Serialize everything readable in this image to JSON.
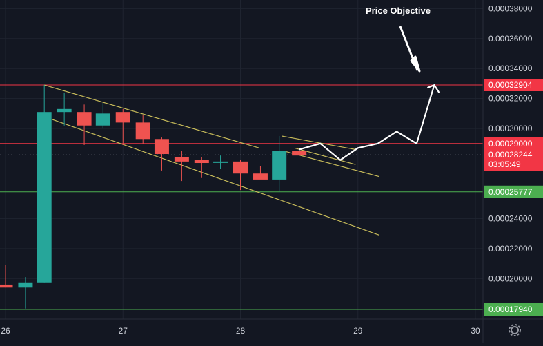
{
  "chart_data": {
    "type": "candlestick",
    "annotation": "Price Objective",
    "x_ticks": [
      "26",
      "27",
      "28",
      "29",
      "30"
    ],
    "y_ticks": [
      "0.00038000",
      "0.00036000",
      "0.00034000",
      "0.00032000",
      "0.00030000",
      "0.00024000",
      "0.00022000",
      "0.00020000"
    ],
    "y_tick_values": [
      0.00038,
      0.00036,
      0.00034,
      0.00032,
      0.0003,
      0.00024,
      0.00022,
      0.0002
    ],
    "ylim": [
      0.00016,
      0.00038
    ],
    "xlim": [
      25.95,
      30.05
    ],
    "price_labels": [
      {
        "value": 0.00032904,
        "text": "0.00032904",
        "color": "#f23645"
      },
      {
        "value": 0.00029,
        "text": "0.00029000",
        "color": "#f23645"
      },
      {
        "value": 0.00028244,
        "text": "0.00028244",
        "color": "#f23645",
        "countdown": "03:05:49"
      },
      {
        "value": 0.00025777,
        "text": "0.00025777",
        "color": "#4caf50"
      },
      {
        "value": 0.0001794,
        "text": "0.00017940",
        "color": "#4caf50"
      }
    ],
    "horizontal_lines": [
      {
        "value": 0.00032904,
        "color": "#f23645"
      },
      {
        "value": 0.00029,
        "color": "#f23645"
      },
      {
        "value": 0.00025777,
        "color": "#4caf50"
      },
      {
        "value": 0.0001794,
        "color": "#4caf50"
      }
    ],
    "current_price": 0.00028244,
    "candles": [
      {
        "t": 26.0,
        "o": 0.000196,
        "h": 0.000209,
        "l": 0.000194,
        "c": 0.000194
      },
      {
        "t": 26.17,
        "o": 0.000194,
        "h": 0.000201,
        "l": 0.00018,
        "c": 0.000197
      },
      {
        "t": 26.33,
        "o": 0.000197,
        "h": 0.000329,
        "l": 0.000197,
        "c": 0.000311
      },
      {
        "t": 26.5,
        "o": 0.000311,
        "h": 0.000324,
        "l": 0.000302,
        "c": 0.000313
      },
      {
        "t": 26.67,
        "o": 0.000311,
        "h": 0.000316,
        "l": 0.000289,
        "c": 0.000302
      },
      {
        "t": 26.83,
        "o": 0.000302,
        "h": 0.000317,
        "l": 0.0003,
        "c": 0.00031
      },
      {
        "t": 27.0,
        "o": 0.000311,
        "h": 0.000313,
        "l": 0.000289,
        "c": 0.000304
      },
      {
        "t": 27.17,
        "o": 0.000304,
        "h": 0.000309,
        "l": 0.00029,
        "c": 0.000293
      },
      {
        "t": 27.33,
        "o": 0.000293,
        "h": 0.000294,
        "l": 0.000272,
        "c": 0.000283
      },
      {
        "t": 27.5,
        "o": 0.000281,
        "h": 0.000285,
        "l": 0.000265,
        "c": 0.000278
      },
      {
        "t": 27.67,
        "o": 0.000279,
        "h": 0.000281,
        "l": 0.000267,
        "c": 0.000277
      },
      {
        "t": 27.83,
        "o": 0.000278,
        "h": 0.000282,
        "l": 0.000273,
        "c": 0.000278
      },
      {
        "t": 28.0,
        "o": 0.000278,
        "h": 0.000279,
        "l": 0.000259,
        "c": 0.00027
      },
      {
        "t": 28.17,
        "o": 0.00027,
        "h": 0.000275,
        "l": 0.000268,
        "c": 0.000266
      },
      {
        "t": 28.33,
        "o": 0.000266,
        "h": 0.000295,
        "l": 0.000258,
        "c": 0.000285
      },
      {
        "t": 28.5,
        "o": 0.000285,
        "h": 0.000286,
        "l": 0.000282,
        "c": 0.000282
      }
    ],
    "trendlines": [
      {
        "t1": 26.33,
        "v1": 0.000329,
        "t2": 28.16,
        "v2": 0.000287
      },
      {
        "t1": 26.4,
        "v1": 0.000306,
        "t2": 29.18,
        "v2": 0.000229
      },
      {
        "t1": 28.37,
        "v1": 0.000285,
        "t2": 29.18,
        "v2": 0.000268
      },
      {
        "t1": 28.35,
        "v1": 0.000295,
        "t2": 28.98,
        "v2": 0.000286
      },
      {
        "t1": 28.46,
        "v1": 0.000287,
        "t2": 28.98,
        "v2": 0.000276
      }
    ],
    "projection": [
      {
        "t": 28.5,
        "v": 0.000286
      },
      {
        "t": 28.68,
        "v": 0.00029
      },
      {
        "t": 28.85,
        "v": 0.000279
      },
      {
        "t": 29.0,
        "v": 0.000287
      },
      {
        "t": 29.17,
        "v": 0.00029
      },
      {
        "t": 29.33,
        "v": 0.000298
      },
      {
        "t": 29.5,
        "v": 0.00029
      },
      {
        "t": 29.65,
        "v": 0.000329
      }
    ],
    "colors": {
      "background": "#131722",
      "grid": "#1f2430",
      "up": "#26a69a",
      "down": "#ef5350",
      "trendline": "#c8bc5a",
      "projection": "#ffffff",
      "axis_text": "#d1d4dc",
      "current_line": "#787b86"
    }
  }
}
